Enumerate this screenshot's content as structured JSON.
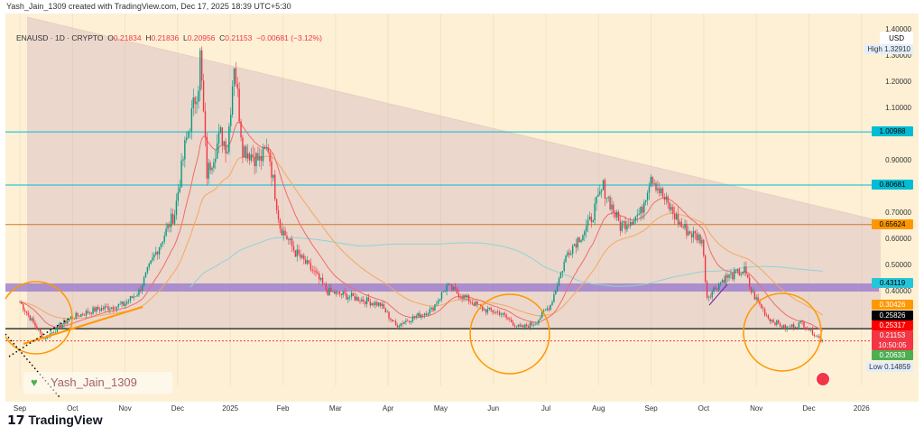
{
  "caption": "Yash_Jain_1309 created with TradingView.com, Dec 17, 2025 18:39 UTC+5:30",
  "legend": {
    "symbol": "ENAUSD · 1D · CRYPTO",
    "o_label": "O",
    "o": "0.21834",
    "h_label": "H",
    "h": "0.21836",
    "l_label": "L",
    "l": "0.20956",
    "c_label": "C",
    "c": "0.21153",
    "change": "−0.00681 (−3.12%)"
  },
  "currency": "USD",
  "price_ticks": [
    "1.40000",
    "1.30000",
    "1.20000",
    "1.10000",
    "0.90000",
    "0.70000",
    "0.60000",
    "0.50000",
    "0.40000"
  ],
  "high": {
    "label": "High",
    "value": "1.32910"
  },
  "low": {
    "label": "Low",
    "value": "0.14859"
  },
  "tags": [
    {
      "value": "1.00988",
      "color": "#00bcd4",
      "text": "#000"
    },
    {
      "value": "0.80681",
      "color": "#00bcd4",
      "text": "#000"
    },
    {
      "value": "0.65624",
      "color": "#ff9800",
      "text": "#000"
    },
    {
      "value": "0.43119",
      "color": "#26c6da",
      "text": "#000"
    },
    {
      "value": "0.30426",
      "color": "#ff9800",
      "text": "#fff"
    },
    {
      "value": "0.25826",
      "color": "#000000",
      "text": "#fff"
    },
    {
      "value": "0.25317",
      "color": "#ff0000",
      "text": "#fff"
    },
    {
      "value": "0.21153",
      "color": "#f23645",
      "text": "#fff"
    },
    {
      "value": "0.20633",
      "color": "#4caf50",
      "text": "#fff"
    }
  ],
  "countdown": "10:50:05",
  "time_labels": [
    "Sep",
    "Oct",
    "Nov",
    "Dec",
    "2025",
    "Feb",
    "Mar",
    "Apr",
    "May",
    "Jun",
    "Jul",
    "Aug",
    "Sep",
    "Oct",
    "Nov",
    "Dec",
    "2026"
  ],
  "watermark": "Yash_Jain_1309",
  "brand": "TradingView",
  "colors": {
    "up": "#089981",
    "down": "#f23645",
    "bg": "#fdf0d5",
    "levels": "#00bcd4",
    "zone": "#9575cd",
    "circles": "#ff9800"
  },
  "chart_data": {
    "type": "candlestick",
    "symbol": "ENAUSD",
    "interval": "1D",
    "scale": "linear",
    "ylim": [
      0.12,
      1.42
    ],
    "levels": [
      1.00988,
      0.80681,
      0.65624,
      0.25826,
      0.21153
    ],
    "zone": [
      0.4,
      0.43119
    ],
    "closes": [
      [
        "2024-09-01",
        0.36
      ],
      [
        "2024-09-15",
        0.22
      ],
      [
        "2024-10-01",
        0.3
      ],
      [
        "2024-10-15",
        0.33
      ],
      [
        "2024-11-01",
        0.35
      ],
      [
        "2024-11-10",
        0.4
      ],
      [
        "2024-11-20",
        0.55
      ],
      [
        "2024-12-01",
        0.7
      ],
      [
        "2024-12-07",
        0.95
      ],
      [
        "2024-12-15",
        1.2
      ],
      [
        "2024-12-16",
        1.3
      ],
      [
        "2024-12-20",
        0.85
      ],
      [
        "2024-12-28",
        1.0
      ],
      [
        "2025-01-01",
        0.95
      ],
      [
        "2025-01-05",
        1.28
      ],
      [
        "2025-01-10",
        0.95
      ],
      [
        "2025-01-20",
        0.9
      ],
      [
        "2025-01-25",
        0.95
      ],
      [
        "2025-02-01",
        0.65
      ],
      [
        "2025-02-10",
        0.55
      ],
      [
        "2025-02-20",
        0.48
      ],
      [
        "2025-03-01",
        0.4
      ],
      [
        "2025-03-15",
        0.38
      ],
      [
        "2025-04-01",
        0.35
      ],
      [
        "2025-04-10",
        0.27
      ],
      [
        "2025-04-20",
        0.3
      ],
      [
        "2025-05-01",
        0.33
      ],
      [
        "2025-05-10",
        0.42
      ],
      [
        "2025-05-20",
        0.38
      ],
      [
        "2025-06-01",
        0.33
      ],
      [
        "2025-06-10",
        0.32
      ],
      [
        "2025-06-22",
        0.26
      ],
      [
        "2025-07-01",
        0.28
      ],
      [
        "2025-07-10",
        0.35
      ],
      [
        "2025-07-20",
        0.55
      ],
      [
        "2025-08-01",
        0.65
      ],
      [
        "2025-08-10",
        0.8
      ],
      [
        "2025-08-20",
        0.65
      ],
      [
        "2025-09-01",
        0.7
      ],
      [
        "2025-09-07",
        0.85
      ],
      [
        "2025-09-15",
        0.75
      ],
      [
        "2025-09-25",
        0.65
      ],
      [
        "2025-10-01",
        0.62
      ],
      [
        "2025-10-07",
        0.6
      ],
      [
        "2025-10-10",
        0.38
      ],
      [
        "2025-10-20",
        0.45
      ],
      [
        "2025-11-01",
        0.48
      ],
      [
        "2025-11-05",
        0.4
      ],
      [
        "2025-11-15",
        0.3
      ],
      [
        "2025-11-25",
        0.26
      ],
      [
        "2025-12-05",
        0.28
      ],
      [
        "2025-12-17",
        0.21153
      ]
    ]
  }
}
